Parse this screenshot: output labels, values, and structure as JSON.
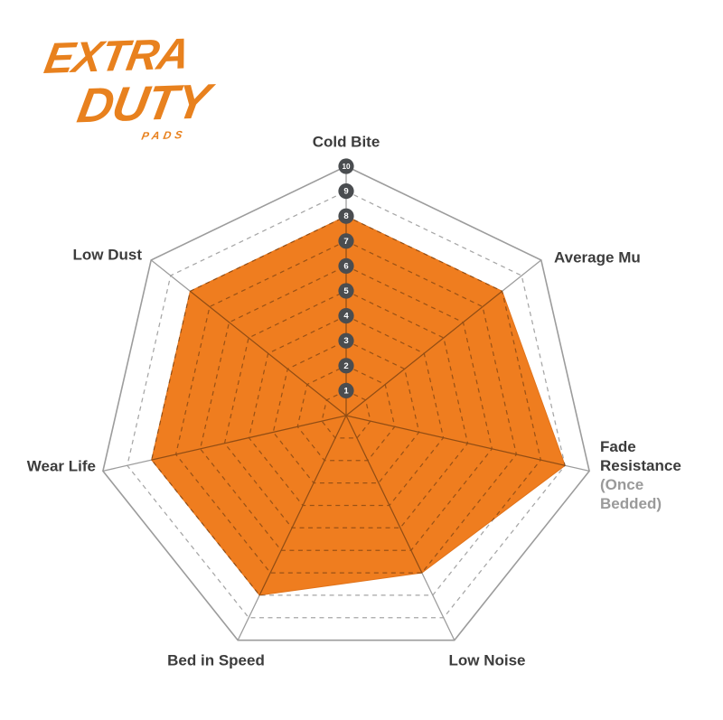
{
  "logo": {
    "line1": "EXTRA",
    "line2": "DUTY",
    "line3": "PADS",
    "color": "#E8811E"
  },
  "chart_data": {
    "type": "radar",
    "title": "",
    "categories": [
      "Cold Bite",
      "Average Mu",
      "Fade Resistance",
      "Low Noise",
      "Bed in Speed",
      "Wear Life",
      "Low Dust"
    ],
    "values": [
      8,
      8,
      9,
      7,
      8,
      8,
      8
    ],
    "axis_sublabels": {
      "Fade Resistance": "(Once Bedded)"
    },
    "scale": {
      "min": 0,
      "max": 10,
      "rings": 10,
      "tick_labels": [
        "1",
        "2",
        "3",
        "4",
        "5",
        "6",
        "7",
        "8",
        "9",
        "10"
      ]
    },
    "legend": "none",
    "grid": "dashed-heptagon-rings",
    "colors": {
      "fill": "#EF7D1F",
      "fill_stroke": "#E1731A",
      "grid_line": "#9C9C9C",
      "ring_dash": "#A6A6A6",
      "axis_label": "#3C3C3C",
      "axis_sublabel": "#9A9A9A",
      "tick_circle": "#4A4D50",
      "tick_text": "#FFFFFF"
    }
  }
}
